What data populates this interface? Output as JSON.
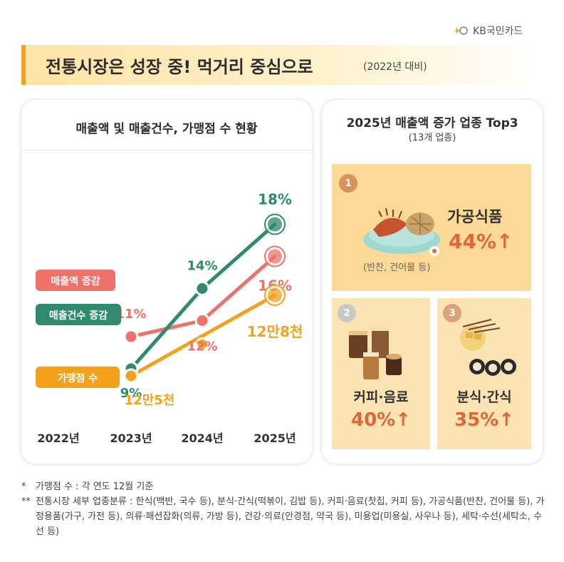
{
  "brand": {
    "logo_text": "KB국민카드"
  },
  "headline": {
    "title": "전통시장은 성장 중! 먹거리 중심으로",
    "subtitle": "(2022년 대비)"
  },
  "chart_data": {
    "type": "line",
    "title": "매출액 및 매출건수, 가맹점 수 현황",
    "categories": [
      "2022년",
      "2023년",
      "2024년",
      "2025년"
    ],
    "series": [
      {
        "name": "매출액 증감",
        "color": "#f0716a",
        "values": [
          null,
          11,
          12,
          16
        ],
        "value_labels": [
          "",
          "11%",
          "12%",
          "16%"
        ]
      },
      {
        "name": "매출건수 증감",
        "color": "#2f8a6e",
        "values": [
          null,
          9,
          14,
          18
        ],
        "value_labels": [
          "",
          "9%",
          "14%",
          "18%"
        ]
      },
      {
        "name": "가맹점 수",
        "color": "#f4a21e",
        "values": [
          null,
          125000,
          null,
          128000
        ],
        "value_labels": [
          "",
          "12만5천",
          "",
          "12만8천"
        ]
      }
    ]
  },
  "top3": {
    "title": "2025년 매출액 증가 업종 Top3",
    "subtitle": "(13개 업종)",
    "items": [
      {
        "rank": "1",
        "name": "가공식품",
        "value": "44%",
        "arrow": "↑",
        "note": "(반찬, 건어물 등)",
        "medal_color": "#d9935a"
      },
      {
        "rank": "2",
        "name": "커피·음료",
        "value": "40%",
        "arrow": "↑",
        "medal_color": "#c8c8c8"
      },
      {
        "rank": "3",
        "name": "분식·간식",
        "value": "35%",
        "arrow": "↑",
        "medal_color": "#d9a47a"
      }
    ]
  },
  "footnotes": [
    {
      "mark": "*",
      "text": "가맹점 수 : 각 연도 12월 기준"
    },
    {
      "mark": "**",
      "text": "전통시장 세부 업종분류 : 한식(백반, 국수 등), 분식·간식(떡볶이, 김밥 등), 커피·음료(찻집, 커피 등), 가공식품(반찬, 건어물 등), 가정용품(가구, 가전 등), 의류·패션잡화(의류, 가방 등), 건강·의료(안경점, 약국 등), 미용업(미용실, 사우나 등), 세탁·수선(세탁소, 수선 등)"
    }
  ]
}
